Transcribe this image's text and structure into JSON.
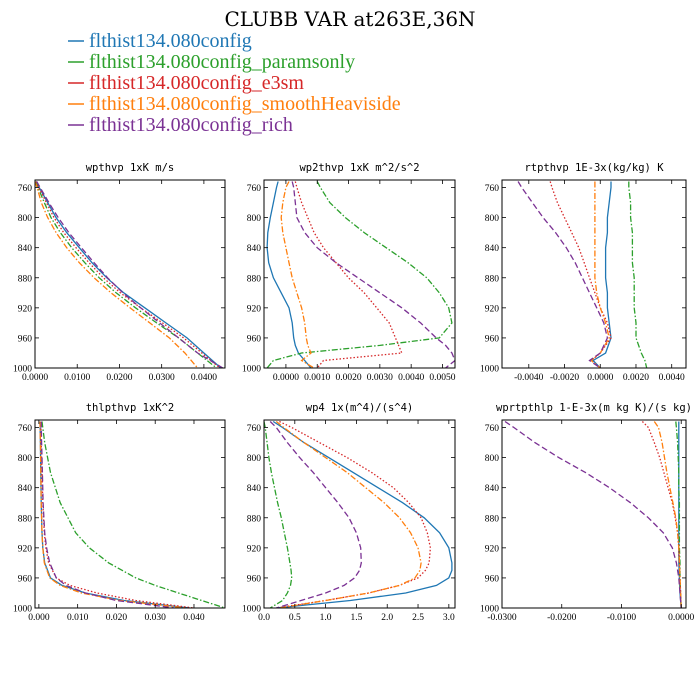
{
  "figure_title": "CLUBB VAR at263E,36N",
  "legend": [
    {
      "label": "flthist134.080config",
      "color": "#1f77b4"
    },
    {
      "label": "flthist134.080config_paramsonly",
      "color": "#2ca02c"
    },
    {
      "label": "flthist134.080config_e3sm",
      "color": "#d62728"
    },
    {
      "label": "flthist134.080config_smoothHeaviside",
      "color": "#ff7f0e"
    },
    {
      "label": "flthist134.080config_rich",
      "color": "#7b3294"
    }
  ],
  "chart_data": [
    {
      "type": "line",
      "title": "wpthvp  1xK m/s",
      "xlim": [
        0.0,
        0.045
      ],
      "ylim": [
        1000,
        750
      ],
      "xticks": [
        0.0,
        0.01,
        0.02,
        0.03,
        0.04
      ],
      "xtick_labels": [
        "0.0000",
        "0.0100",
        "0.0200",
        "0.0300",
        "0.0400"
      ],
      "yticks": [
        760,
        800,
        840,
        880,
        920,
        960,
        1000
      ],
      "ytick_labels": [
        "760",
        "800",
        "840",
        "880",
        "920",
        "960",
        "1000"
      ],
      "y": [
        752,
        760,
        780,
        800,
        820,
        840,
        860,
        880,
        900,
        920,
        940,
        960,
        980,
        1000
      ],
      "series": [
        {
          "color": "#1f77b4",
          "style": "solid",
          "x": [
            0.0003,
            0.001,
            0.003,
            0.005,
            0.0075,
            0.0105,
            0.0135,
            0.017,
            0.021,
            0.026,
            0.031,
            0.036,
            0.04,
            0.044
          ]
        },
        {
          "color": "#2ca02c",
          "style": "dashdot",
          "x": [
            0.0002,
            0.0007,
            0.0022,
            0.0038,
            0.006,
            0.0087,
            0.0118,
            0.0152,
            0.0192,
            0.0238,
            0.0288,
            0.034,
            0.0385,
            0.043
          ]
        },
        {
          "color": "#d62728",
          "style": "dotted",
          "x": [
            0.0003,
            0.0009,
            0.0027,
            0.0045,
            0.0068,
            0.0097,
            0.0128,
            0.0162,
            0.0202,
            0.025,
            0.0302,
            0.0352,
            0.0395,
            0.0438
          ]
        },
        {
          "color": "#ff7f0e",
          "style": "dashdot",
          "x": [
            0.0,
            0.0005,
            0.0015,
            0.003,
            0.005,
            0.0075,
            0.0105,
            0.014,
            0.018,
            0.0225,
            0.0272,
            0.0318,
            0.0355,
            0.0385
          ]
        },
        {
          "color": "#7b3294",
          "style": "dashed",
          "x": [
            0.0004,
            0.0012,
            0.0033,
            0.0055,
            0.008,
            0.011,
            0.014,
            0.0172,
            0.0208,
            0.025,
            0.0295,
            0.034,
            0.0385,
            0.0445
          ]
        }
      ]
    },
    {
      "type": "line",
      "title": "wp2thvp  1xK m^2/s^2",
      "xlim": [
        -0.0007,
        0.0054
      ],
      "ylim": [
        1000,
        750
      ],
      "xticks": [
        0.0,
        0.001,
        0.002,
        0.003,
        0.004,
        0.005
      ],
      "xtick_labels": [
        "0.0000",
        "0.0010",
        "0.0020",
        "0.0030",
        "0.0040",
        "0.0050"
      ],
      "yticks": [
        760,
        800,
        840,
        880,
        920,
        960,
        1000
      ],
      "ytick_labels": [
        "760",
        "800",
        "840",
        "880",
        "920",
        "960",
        "1000"
      ],
      "y": [
        752,
        760,
        780,
        800,
        820,
        840,
        860,
        880,
        900,
        920,
        940,
        960,
        970,
        980,
        990,
        1000
      ],
      "series": [
        {
          "color": "#1f77b4",
          "style": "solid",
          "x": [
            -0.00025,
            -0.0003,
            -0.0004,
            -0.0005,
            -0.00058,
            -0.0006,
            -0.00055,
            -0.0004,
            -0.00015,
            0.0001,
            0.0002,
            0.00025,
            0.0003,
            0.0004,
            0.0006,
            0.0008
          ]
        },
        {
          "color": "#2ca02c",
          "style": "dashdot",
          "x": [
            0.001,
            0.0011,
            0.0014,
            0.0019,
            0.0025,
            0.0032,
            0.0039,
            0.0045,
            0.0049,
            0.0052,
            0.0053,
            0.0049,
            0.003,
            0.0005,
            -0.0004,
            -0.0006
          ]
        },
        {
          "color": "#d62728",
          "style": "dotted",
          "x": [
            0.0003,
            0.00035,
            0.0005,
            0.0007,
            0.0009,
            0.0012,
            0.0016,
            0.002,
            0.0025,
            0.0029,
            0.0033,
            0.0035,
            0.0036,
            0.0037,
            0.0012,
            0.001
          ]
        },
        {
          "color": "#ff7f0e",
          "style": "dashdot",
          "x": [
            0.0001,
            0.0,
            -0.0001,
            -0.00015,
            -0.0001,
            0.0,
            0.0001,
            0.0002,
            0.00035,
            0.0005,
            0.0006,
            0.00065,
            0.0007,
            0.0008,
            0.0005,
            0.0009
          ]
        },
        {
          "color": "#7b3294",
          "style": "dashed",
          "x": [
            0.0002,
            0.00025,
            0.0003,
            0.00035,
            0.0006,
            0.001,
            0.0016,
            0.0023,
            0.003,
            0.0037,
            0.0043,
            0.0048,
            0.0051,
            0.0053,
            0.0054,
            0.0051
          ]
        }
      ]
    },
    {
      "type": "line",
      "title": "rtpthvp  1E-3x(kg/kg) K",
      "xlim": [
        -0.0055,
        0.0048
      ],
      "ylim": [
        1000,
        750
      ],
      "xticks": [
        -0.004,
        -0.002,
        0.0,
        0.002,
        0.004
      ],
      "xtick_labels": [
        "-0.0040",
        "-0.0020",
        "0.0000",
        "0.0020",
        "0.0040"
      ],
      "yticks": [
        760,
        800,
        840,
        880,
        920,
        960,
        1000
      ],
      "ytick_labels": [
        "760",
        "800",
        "840",
        "880",
        "920",
        "960",
        "1000"
      ],
      "y": [
        752,
        760,
        780,
        800,
        820,
        840,
        860,
        880,
        900,
        920,
        940,
        960,
        980,
        990,
        1000
      ],
      "series": [
        {
          "color": "#1f77b4",
          "style": "solid",
          "x": [
            0.0006,
            0.0006,
            0.0005,
            0.0004,
            0.0004,
            0.0003,
            0.0003,
            0.0003,
            0.0004,
            0.0004,
            0.0005,
            0.0006,
            0.0003,
            -0.0004,
            0.0
          ]
        },
        {
          "color": "#2ca02c",
          "style": "dashdot",
          "x": [
            0.0016,
            0.0016,
            0.0017,
            0.0017,
            0.0018,
            0.0018,
            0.0018,
            0.0019,
            0.0019,
            0.0019,
            0.002,
            0.002,
            0.0023,
            0.0025,
            0.0026
          ]
        },
        {
          "color": "#d62728",
          "style": "dotted",
          "x": [
            -0.0028,
            -0.0027,
            -0.0024,
            -0.002,
            -0.0016,
            -0.0012,
            -0.0009,
            -0.0006,
            -0.0003,
            0.0,
            0.0004,
            0.0006,
            0.0,
            -0.0005,
            0.0
          ]
        },
        {
          "color": "#ff7f0e",
          "style": "dashdot",
          "x": [
            -0.0003,
            -0.0003,
            -0.0003,
            -0.0003,
            -0.0003,
            -0.0003,
            -0.0003,
            -0.0003,
            -0.0002,
            0.0,
            0.0003,
            0.0005,
            0.0,
            -0.0005,
            0.0
          ]
        },
        {
          "color": "#7b3294",
          "style": "dashed",
          "x": [
            -0.0046,
            -0.0044,
            -0.0038,
            -0.0032,
            -0.0025,
            -0.0019,
            -0.0014,
            -0.001,
            -0.0006,
            -0.0002,
            0.0002,
            0.0004,
            0.0,
            -0.0006,
            0.0
          ]
        }
      ]
    },
    {
      "type": "line",
      "title": "thlpthvp  1xK^2",
      "xlim": [
        -0.001,
        0.048
      ],
      "ylim": [
        1000,
        750
      ],
      "xticks": [
        0.0,
        0.01,
        0.02,
        0.03,
        0.04
      ],
      "xtick_labels": [
        "0.000",
        "0.010",
        "0.020",
        "0.030",
        "0.040"
      ],
      "yticks": [
        760,
        800,
        840,
        880,
        920,
        960,
        1000
      ],
      "ytick_labels": [
        "760",
        "800",
        "840",
        "880",
        "920",
        "960",
        "1000"
      ],
      "y": [
        752,
        780,
        820,
        860,
        900,
        920,
        940,
        960,
        970,
        980,
        990,
        1000
      ],
      "series": [
        {
          "color": "#1f77b4",
          "style": "solid",
          "x": [
            0.0003,
            0.0004,
            0.0005,
            0.0006,
            0.0008,
            0.001,
            0.0015,
            0.003,
            0.006,
            0.012,
            0.022,
            0.039
          ]
        },
        {
          "color": "#2ca02c",
          "style": "dashdot",
          "x": [
            0.0008,
            0.0015,
            0.003,
            0.0055,
            0.0095,
            0.013,
            0.018,
            0.025,
            0.03,
            0.036,
            0.042,
            0.048
          ]
        },
        {
          "color": "#d62728",
          "style": "dotted",
          "x": [
            0.0005,
            0.0006,
            0.0008,
            0.001,
            0.0014,
            0.0018,
            0.0025,
            0.0045,
            0.008,
            0.015,
            0.025,
            0.04
          ]
        },
        {
          "color": "#ff7f0e",
          "style": "dashdot",
          "x": [
            0.0003,
            0.0004,
            0.0005,
            0.0006,
            0.0008,
            0.001,
            0.0014,
            0.0028,
            0.0055,
            0.011,
            0.021,
            0.038
          ]
        },
        {
          "color": "#7b3294",
          "style": "dashed",
          "x": [
            0.0006,
            0.0007,
            0.0009,
            0.0011,
            0.0015,
            0.002,
            0.0028,
            0.0045,
            0.007,
            0.012,
            0.02,
            0.035
          ]
        }
      ]
    },
    {
      "type": "line",
      "title": "wp4  1x(m^4)/(s^4)",
      "xlim": [
        0.0,
        3.1
      ],
      "ylim": [
        1000,
        750
      ],
      "xticks": [
        0.0,
        0.5,
        1.0,
        1.5,
        2.0,
        2.5,
        3.0
      ],
      "xtick_labels": [
        "0.0",
        "0.5",
        "1.0",
        "1.5",
        "2.0",
        "2.5",
        "3.0"
      ],
      "yticks": [
        760,
        800,
        840,
        880,
        920,
        960,
        1000
      ],
      "ytick_labels": [
        "760",
        "800",
        "840",
        "880",
        "920",
        "960",
        "1000"
      ],
      "y": [
        752,
        760,
        780,
        800,
        820,
        840,
        860,
        880,
        900,
        920,
        940,
        950,
        960,
        970,
        980,
        990,
        1000
      ],
      "series": [
        {
          "color": "#1f77b4",
          "style": "solid",
          "x": [
            0.15,
            0.3,
            0.65,
            1.05,
            1.45,
            1.85,
            2.25,
            2.6,
            2.85,
            3.0,
            3.05,
            3.05,
            3.0,
            2.8,
            2.3,
            1.4,
            0.2
          ]
        },
        {
          "color": "#2ca02c",
          "style": "dashdot",
          "x": [
            0.0,
            0.02,
            0.05,
            0.08,
            0.12,
            0.17,
            0.22,
            0.28,
            0.33,
            0.38,
            0.42,
            0.44,
            0.45,
            0.43,
            0.38,
            0.3,
            0.1
          ]
        },
        {
          "color": "#d62728",
          "style": "dotted",
          "x": [
            0.25,
            0.45,
            0.9,
            1.35,
            1.75,
            2.1,
            2.35,
            2.55,
            2.65,
            2.7,
            2.68,
            2.62,
            2.5,
            2.2,
            1.7,
            1.0,
            0.2
          ]
        },
        {
          "color": "#ff7f0e",
          "style": "dashdot",
          "x": [
            0.2,
            0.32,
            0.65,
            1.0,
            1.35,
            1.65,
            1.95,
            2.2,
            2.38,
            2.5,
            2.55,
            2.53,
            2.45,
            2.2,
            1.7,
            1.0,
            0.25
          ]
        },
        {
          "color": "#7b3294",
          "style": "dashed",
          "x": [
            0.1,
            0.2,
            0.38,
            0.58,
            0.8,
            1.0,
            1.2,
            1.38,
            1.5,
            1.57,
            1.58,
            1.55,
            1.47,
            1.3,
            1.0,
            0.6,
            0.2
          ]
        }
      ]
    },
    {
      "type": "line",
      "title": "wprtpthlp  1-E-3x(m kg K)/(s kg)",
      "xlim": [
        -0.03,
        0.0008
      ],
      "ylim": [
        1000,
        750
      ],
      "xticks": [
        -0.03,
        -0.02,
        -0.01,
        0.0
      ],
      "xtick_labels": [
        "-0.0300",
        "-0.0200",
        "-0.0100",
        "0.0000"
      ],
      "yticks": [
        760,
        800,
        840,
        880,
        920,
        960,
        1000
      ],
      "ytick_labels": [
        "760",
        "800",
        "840",
        "880",
        "920",
        "960",
        "1000"
      ],
      "y": [
        752,
        760,
        780,
        800,
        820,
        840,
        860,
        880,
        900,
        920,
        940,
        960,
        980,
        1000
      ],
      "series": [
        {
          "color": "#1f77b4",
          "style": "solid",
          "x": [
            -0.0004,
            -0.0004,
            -0.0004,
            -0.0004,
            -0.0004,
            -0.0004,
            -0.0004,
            -0.0004,
            -0.0004,
            -0.0004,
            -0.0004,
            -0.0003,
            -0.0002,
            0.0
          ]
        },
        {
          "color": "#2ca02c",
          "style": "dashdot",
          "x": [
            -0.0009,
            -0.0008,
            -0.0006,
            -0.0005,
            -0.0004,
            -0.0004,
            -0.0003,
            -0.0003,
            -0.0003,
            -0.0003,
            -0.0002,
            -0.0002,
            -0.0001,
            0.0
          ]
        },
        {
          "color": "#d62728",
          "style": "dotted",
          "x": [
            -0.0065,
            -0.0055,
            -0.0045,
            -0.0036,
            -0.0029,
            -0.0022,
            -0.0015,
            -0.001,
            -0.0006,
            -0.0004,
            -0.0003,
            -0.0002,
            -0.0001,
            0.0
          ]
        },
        {
          "color": "#ff7f0e",
          "style": "dashdot",
          "x": [
            -0.0045,
            -0.0038,
            -0.0032,
            -0.0028,
            -0.0024,
            -0.0019,
            -0.0014,
            -0.0009,
            -0.0006,
            -0.0004,
            -0.0003,
            -0.0002,
            -0.0001,
            0.0
          ]
        },
        {
          "color": "#7b3294",
          "style": "dashed",
          "x": [
            -0.0295,
            -0.028,
            -0.0245,
            -0.0205,
            -0.016,
            -0.012,
            -0.0085,
            -0.0055,
            -0.003,
            -0.0015,
            -0.0008,
            -0.0004,
            -0.0002,
            0.0
          ]
        }
      ]
    }
  ]
}
